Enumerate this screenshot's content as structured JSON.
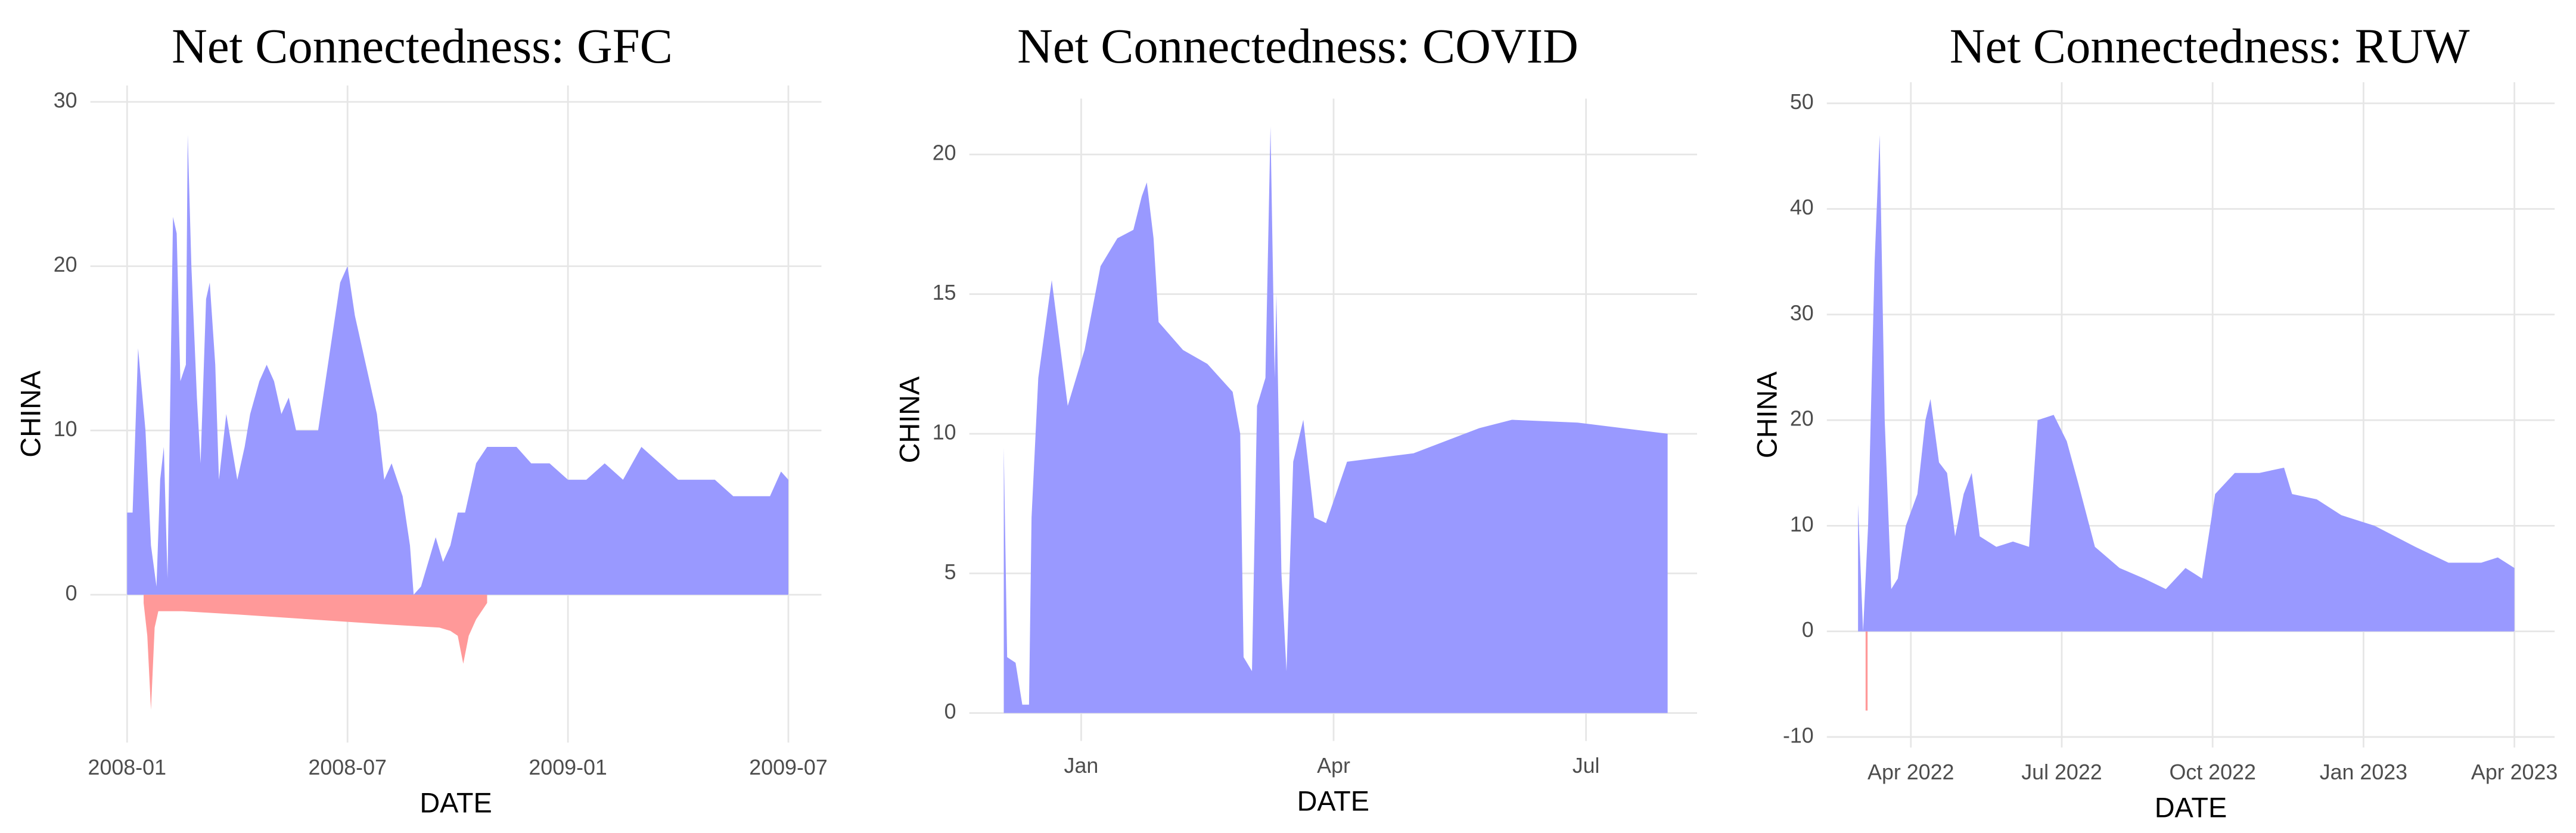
{
  "chart_data": [
    {
      "type": "area",
      "title": "Net Connectedness: GFC",
      "x_label": "DATE",
      "y_label": "CHINA",
      "xlim": [
        -1,
        18.9
      ],
      "xticks": [
        {
          "value": 0,
          "label": "2008-01"
        },
        {
          "value": 6,
          "label": "2008-07"
        },
        {
          "value": 12,
          "label": "2009-01"
        },
        {
          "value": 18,
          "label": "2009-07"
        }
      ],
      "ylim": [
        -9,
        31
      ],
      "yticks": [
        0,
        10,
        20,
        30
      ],
      "grid": true,
      "series": [
        {
          "color": "#9999ff",
          "x": [
            0,
            0.15,
            0.3,
            0.5,
            0.65,
            0.8,
            0.9,
            1.0,
            1.1,
            1.25,
            1.35,
            1.45,
            1.6,
            1.65,
            1.75,
            1.9,
            2.0,
            2.15,
            2.25,
            2.4,
            2.5,
            2.7,
            2.85,
            3.0,
            3.2,
            3.35,
            3.6,
            3.8,
            4.0,
            4.2,
            4.4,
            4.6,
            4.9,
            5.2,
            5.4,
            5.6,
            5.8,
            6.0,
            6.2,
            6.4,
            6.6,
            6.8,
            7.0,
            7.2,
            7.5,
            7.7,
            7.8,
            8.0,
            8.2,
            8.4,
            8.6,
            8.8,
            9.0,
            9.2,
            9.5,
            9.8,
            10.2,
            10.6,
            11.0,
            11.5,
            12.0,
            12.5,
            13.0,
            13.5,
            14.0,
            14.5,
            15.0,
            15.5,
            16.0,
            16.5,
            17.0,
            17.5,
            17.8,
            18.0
          ],
          "values": [
            5,
            5,
            15,
            10,
            3,
            0.5,
            7,
            9,
            1,
            23,
            22,
            13,
            14,
            28,
            20,
            12,
            8,
            18,
            19,
            14,
            7,
            11,
            9,
            7,
            9,
            11,
            13,
            14,
            13,
            11,
            12,
            10,
            10,
            10,
            13,
            16,
            19,
            20,
            17,
            15,
            13,
            11,
            7,
            8,
            6,
            3,
            0,
            0.5,
            2,
            3.5,
            2,
            3,
            5,
            5,
            8,
            9,
            9,
            9,
            8,
            8,
            7,
            7,
            8,
            7,
            9,
            8,
            7,
            7,
            7,
            6,
            6,
            6,
            7.5,
            7
          ]
        },
        {
          "color": "#ff9999",
          "x": [
            0.45,
            0.55,
            0.65,
            0.75,
            0.85,
            1.5,
            3,
            5,
            7,
            8.5,
            8.8,
            9.0,
            9.15,
            9.3,
            9.5,
            9.8
          ],
          "values": [
            -0.5,
            -2.5,
            -7,
            -2,
            -1,
            -1,
            -1.2,
            -1.5,
            -1.8,
            -2,
            -2.2,
            -2.5,
            -4.2,
            -2.5,
            -1.5,
            -0.5
          ]
        }
      ]
    },
    {
      "type": "area",
      "title": "Net Connectedness: COVID",
      "x_label": "DATE",
      "y_label": "CHINA",
      "xlim": [
        -1.33,
        7.32
      ],
      "xticks": [
        {
          "value": 0,
          "label": "Jan"
        },
        {
          "value": 3,
          "label": "Apr"
        },
        {
          "value": 6,
          "label": "Jul"
        }
      ],
      "ylim": [
        -1,
        22
      ],
      "yticks": [
        0,
        5,
        10,
        15,
        20
      ],
      "grid": true,
      "series": [
        {
          "color": "#9999ff",
          "x": [
            -0.92,
            -0.88,
            -0.78,
            -0.7,
            -0.62,
            -0.59,
            -0.51,
            -0.35,
            -0.16,
            0.04,
            0.23,
            0.43,
            0.62,
            0.72,
            0.78,
            0.86,
            0.92,
            1.21,
            1.5,
            1.8,
            1.89,
            1.93,
            2.03,
            2.09,
            2.19,
            2.25,
            2.3,
            2.32,
            2.38,
            2.44,
            2.52,
            2.64,
            2.77,
            2.91,
            3.16,
            3.95,
            4.73,
            5.12,
            5.9,
            6.97
          ],
          "values": [
            9.5,
            2,
            1.8,
            0.3,
            0.3,
            7,
            12,
            15.5,
            11,
            13,
            16,
            17,
            17.3,
            18.5,
            19,
            17,
            14,
            13,
            12.5,
            11.5,
            10,
            2,
            1.5,
            11,
            12,
            21,
            12,
            15,
            5,
            1.5,
            9,
            10.5,
            7,
            6.8,
            9,
            9.3,
            10.2,
            10.5,
            10.4,
            10
          ]
        }
      ]
    },
    {
      "type": "area",
      "title": "Net Connectedness: RUW",
      "x_label": "DATE",
      "y_label": "CHINA",
      "xlim": [
        -1.67,
        12.8
      ],
      "xticks": [
        {
          "value": 0,
          "label": "Apr 2022"
        },
        {
          "value": 3,
          "label": "Jul 2022"
        },
        {
          "value": 6,
          "label": "Oct 2022"
        },
        {
          "value": 9,
          "label": "Jan 2023"
        },
        {
          "value": 12,
          "label": "Apr 2023"
        }
      ],
      "ylim": [
        -11,
        52
      ],
      "yticks": [
        -10,
        0,
        10,
        20,
        30,
        40,
        50
      ],
      "grid": true,
      "series": [
        {
          "color": "#9999ff",
          "x": [
            -1.05,
            -0.95,
            -0.85,
            -0.72,
            -0.62,
            -0.52,
            -0.39,
            -0.26,
            -0.1,
            0.13,
            0.29,
            0.39,
            0.56,
            0.72,
            0.88,
            1.05,
            1.21,
            1.37,
            1.7,
            2.03,
            2.35,
            2.52,
            2.84,
            3.1,
            3.33,
            3.66,
            4.15,
            4.64,
            5.07,
            5.46,
            5.79,
            6.05,
            6.44,
            6.93,
            7.42,
            7.58,
            8.07,
            8.56,
            9.22,
            10.03,
            10.69,
            11.34,
            11.67,
            12.0
          ],
          "values": [
            12,
            0,
            10,
            35,
            47,
            20,
            4,
            5,
            10,
            13,
            20,
            22,
            16,
            15,
            9,
            13,
            15,
            9,
            8,
            8.5,
            8,
            20,
            20.5,
            18,
            14,
            8,
            6,
            5,
            4,
            6,
            5,
            13,
            15,
            15,
            15.5,
            13,
            12.5,
            11,
            10,
            8,
            6.5,
            6.5,
            7,
            6
          ]
        },
        {
          "color": "#ff9999",
          "x": [
            -0.9,
            -0.86
          ],
          "values": [
            -7.5,
            -7.5
          ]
        }
      ]
    }
  ]
}
